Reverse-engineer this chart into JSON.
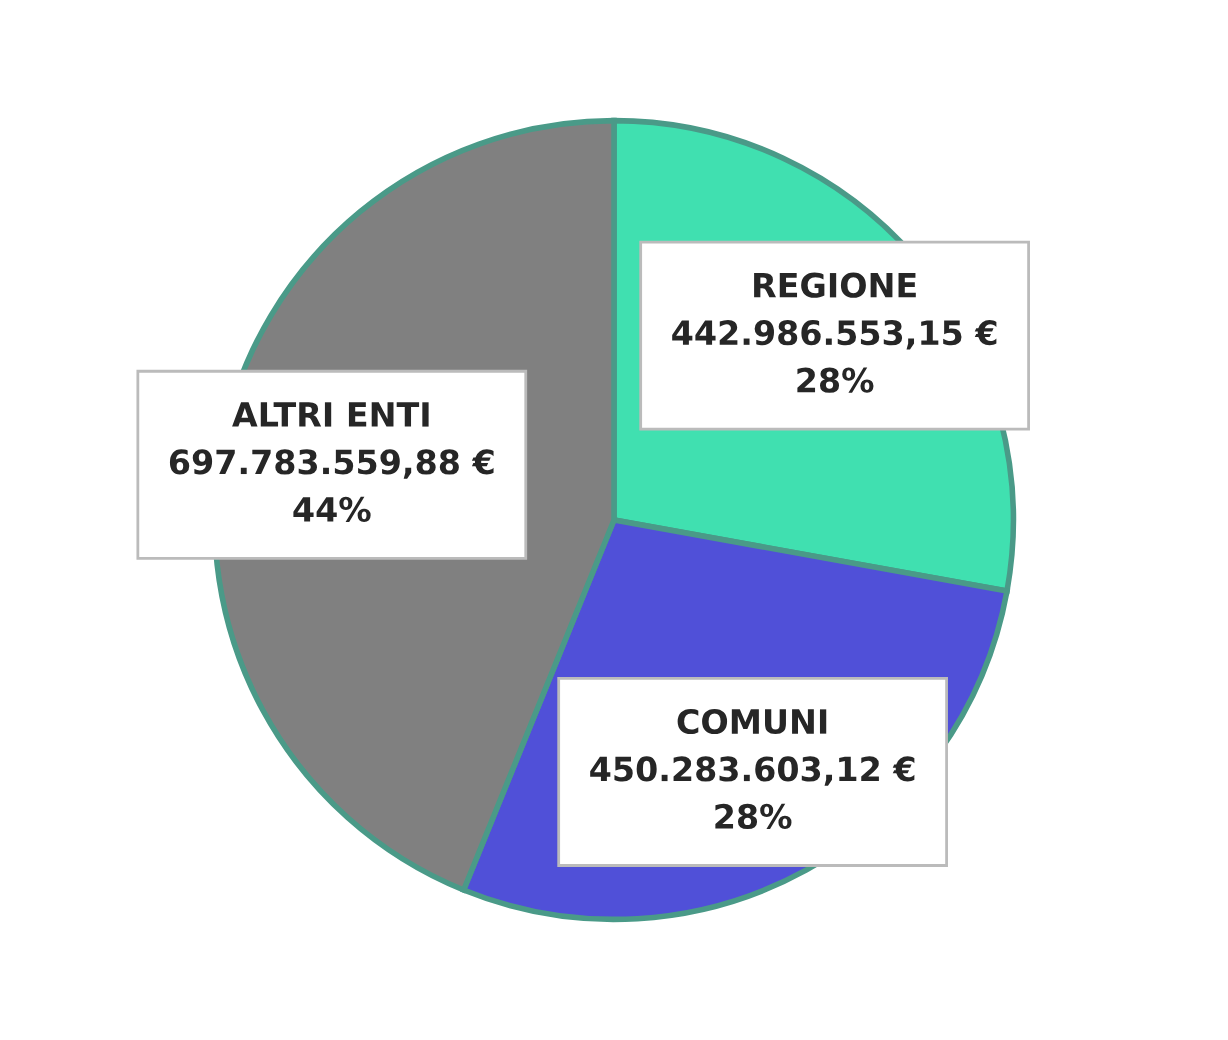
{
  "chart_data": {
    "type": "pie",
    "categories": [
      "REGIONE",
      "COMUNI",
      "ALTRI ENTI"
    ],
    "values": [
      442986553.15,
      450283603.12,
      697783559.88
    ],
    "colors": [
      "#40e0b0",
      "#5050d8",
      "#808080"
    ],
    "value_labels": [
      "442.986.553,15 €\n28%",
      "450.283.603,12 €\n28%",
      "697.783.559,88 €\n44%"
    ]
  }
}
